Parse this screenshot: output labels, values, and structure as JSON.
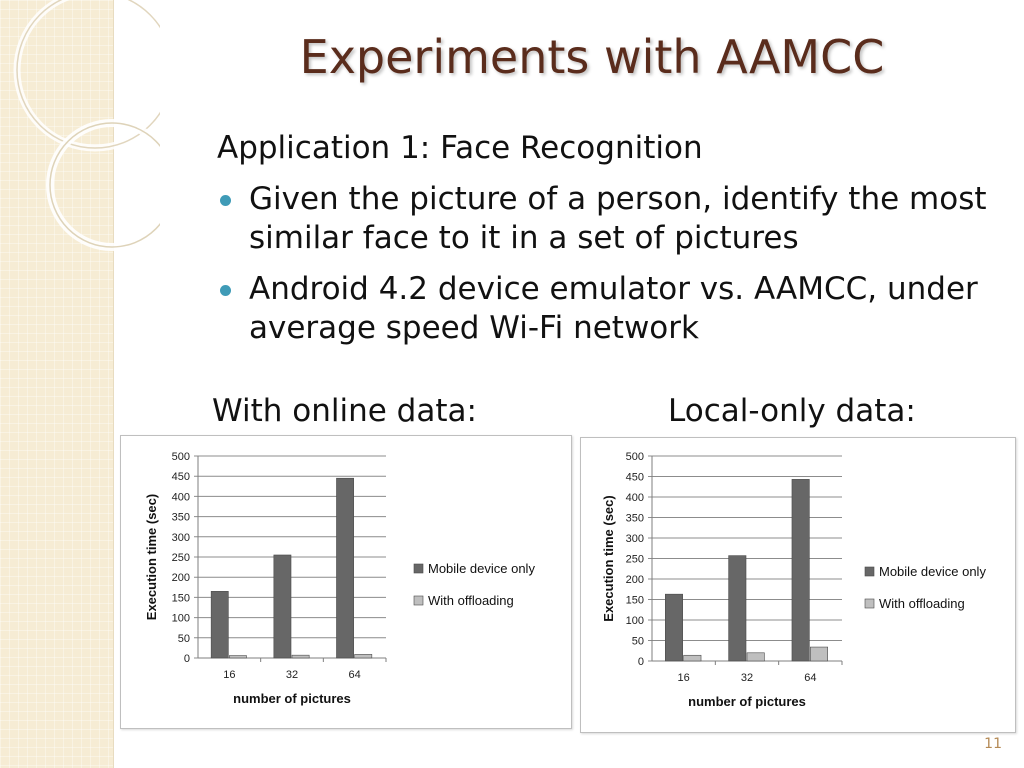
{
  "slide": {
    "title": "Experiments with AAMCC",
    "subtitle": "Application 1: Face Recognition",
    "bullets": [
      "Given the picture of a person, identify the most similar face to it in a set of pictures",
      "Android 4.2 device emulator vs. AAMCC, under average speed Wi-Fi network"
    ],
    "heading_left": "With online data:",
    "heading_right": "Local-only data:",
    "page_number": "11",
    "accent_color": "#3f9bb7",
    "title_color": "#5a2c1c"
  },
  "chart_data": [
    {
      "type": "bar",
      "categories": [
        "16",
        "32",
        "64"
      ],
      "series": [
        {
          "name": "Mobile device only",
          "values": [
            165,
            255,
            445
          ],
          "color": "#676767"
        },
        {
          "name": "With offloading",
          "values": [
            6,
            7,
            9
          ],
          "color": "#bfbfbf"
        }
      ],
      "xlabel": "number of pictures",
      "ylabel": "Execution time (sec)",
      "ylim": [
        0,
        500
      ],
      "yticks": [
        0,
        50,
        100,
        150,
        200,
        250,
        300,
        350,
        400,
        450,
        500
      ],
      "grid": true,
      "legend": "right"
    },
    {
      "type": "bar",
      "categories": [
        "16",
        "32",
        "64"
      ],
      "series": [
        {
          "name": "Mobile device only",
          "values": [
            163,
            257,
            443
          ],
          "color": "#676767"
        },
        {
          "name": "With offloading",
          "values": [
            14,
            20,
            34
          ],
          "color": "#bfbfbf"
        }
      ],
      "xlabel": "number of pictures",
      "ylabel": "Execution time (sec)",
      "ylim": [
        0,
        500
      ],
      "yticks": [
        0,
        50,
        100,
        150,
        200,
        250,
        300,
        350,
        400,
        450,
        500
      ],
      "grid": true,
      "legend": "right"
    }
  ]
}
